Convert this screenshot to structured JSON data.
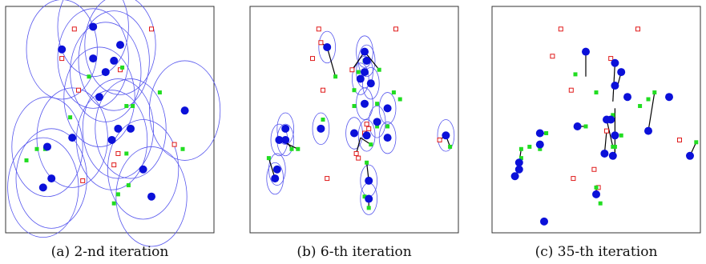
{
  "colors": {
    "blue": "#0b10d9",
    "green": "#21dd21",
    "red": "#e01a1a",
    "ellipse": "#5656ee",
    "link": "#000000"
  },
  "panels": [
    {
      "caption": "(a) 2-nd iteration",
      "blue": [
        [
          0.27,
          0.81
        ],
        [
          0.42,
          0.77
        ],
        [
          0.42,
          0.91
        ],
        [
          0.55,
          0.83
        ],
        [
          0.52,
          0.76
        ],
        [
          0.48,
          0.71
        ],
        [
          0.45,
          0.6
        ],
        [
          0.86,
          0.54
        ],
        [
          0.54,
          0.46
        ],
        [
          0.51,
          0.41
        ],
        [
          0.6,
          0.46
        ],
        [
          0.32,
          0.42
        ],
        [
          0.2,
          0.38
        ],
        [
          0.22,
          0.24
        ],
        [
          0.18,
          0.2
        ],
        [
          0.66,
          0.28
        ],
        [
          0.7,
          0.16
        ]
      ],
      "green": [
        [
          0.56,
          0.73
        ],
        [
          0.4,
          0.69
        ],
        [
          0.74,
          0.62
        ],
        [
          0.58,
          0.56
        ],
        [
          0.61,
          0.56
        ],
        [
          0.31,
          0.51
        ],
        [
          0.15,
          0.37
        ],
        [
          0.19,
          0.37
        ],
        [
          0.85,
          0.37
        ],
        [
          0.1,
          0.32
        ],
        [
          0.58,
          0.35
        ],
        [
          0.54,
          0.17
        ],
        [
          0.52,
          0.13
        ],
        [
          0.59,
          0.21
        ]
      ],
      "red": [
        [
          0.33,
          0.9
        ],
        [
          0.7,
          0.9
        ],
        [
          0.27,
          0.77
        ],
        [
          0.55,
          0.72
        ],
        [
          0.35,
          0.63
        ],
        [
          0.81,
          0.39
        ],
        [
          0.54,
          0.35
        ],
        [
          0.52,
          0.3
        ],
        [
          0.37,
          0.23
        ]
      ],
      "ellipses": [
        [
          0.27,
          0.81,
          0.17,
          0.22
        ],
        [
          0.42,
          0.77,
          0.17,
          0.22
        ],
        [
          0.42,
          0.91,
          0.17,
          0.22
        ],
        [
          0.55,
          0.83,
          0.17,
          0.22
        ],
        [
          0.52,
          0.76,
          0.17,
          0.22
        ],
        [
          0.48,
          0.71,
          0.17,
          0.22
        ],
        [
          0.45,
          0.6,
          0.17,
          0.22
        ],
        [
          0.86,
          0.54,
          0.17,
          0.22
        ],
        [
          0.54,
          0.46,
          0.17,
          0.22
        ],
        [
          0.51,
          0.41,
          0.17,
          0.22
        ],
        [
          0.6,
          0.46,
          0.17,
          0.22
        ],
        [
          0.32,
          0.42,
          0.17,
          0.22
        ],
        [
          0.2,
          0.38,
          0.17,
          0.22
        ],
        [
          0.22,
          0.24,
          0.17,
          0.22
        ],
        [
          0.18,
          0.2,
          0.17,
          0.22
        ],
        [
          0.66,
          0.28,
          0.17,
          0.22
        ],
        [
          0.7,
          0.16,
          0.17,
          0.22
        ]
      ],
      "links": []
    },
    {
      "caption": "(b) 6-th iteration",
      "blue": [
        [
          0.37,
          0.82
        ],
        [
          0.55,
          0.8
        ],
        [
          0.55,
          0.71
        ],
        [
          0.56,
          0.76
        ],
        [
          0.53,
          0.68
        ],
        [
          0.55,
          0.57
        ],
        [
          0.56,
          0.43
        ],
        [
          0.5,
          0.44
        ],
        [
          0.34,
          0.46
        ],
        [
          0.17,
          0.46
        ],
        [
          0.17,
          0.41
        ],
        [
          0.14,
          0.41
        ],
        [
          0.66,
          0.42
        ],
        [
          0.94,
          0.43
        ],
        [
          0.61,
          0.49
        ],
        [
          0.66,
          0.55
        ],
        [
          0.58,
          0.66
        ],
        [
          0.12,
          0.24
        ],
        [
          0.13,
          0.28
        ],
        [
          0.57,
          0.23
        ],
        [
          0.57,
          0.15
        ]
      ],
      "green": [
        [
          0.41,
          0.69
        ],
        [
          0.62,
          0.72
        ],
        [
          0.52,
          0.71
        ],
        [
          0.55,
          0.76
        ],
        [
          0.5,
          0.63
        ],
        [
          0.5,
          0.56
        ],
        [
          0.61,
          0.47
        ],
        [
          0.66,
          0.47
        ],
        [
          0.69,
          0.62
        ],
        [
          0.72,
          0.59
        ],
        [
          0.61,
          0.57
        ],
        [
          0.2,
          0.37
        ],
        [
          0.23,
          0.37
        ],
        [
          0.35,
          0.5
        ],
        [
          0.96,
          0.38
        ],
        [
          0.58,
          0.39
        ],
        [
          0.56,
          0.31
        ],
        [
          0.55,
          0.16
        ],
        [
          0.57,
          0.11
        ],
        [
          0.09,
          0.33
        ]
      ],
      "red": [
        [
          0.33,
          0.9
        ],
        [
          0.7,
          0.9
        ],
        [
          0.34,
          0.84
        ],
        [
          0.3,
          0.77
        ],
        [
          0.49,
          0.72
        ],
        [
          0.35,
          0.63
        ],
        [
          0.55,
          0.44
        ],
        [
          0.51,
          0.35
        ],
        [
          0.52,
          0.33
        ],
        [
          0.56,
          0.48
        ],
        [
          0.57,
          0.46
        ],
        [
          0.37,
          0.24
        ],
        [
          0.91,
          0.41
        ]
      ],
      "ellipses": [
        [
          0.37,
          0.82,
          0.04,
          0.07
        ],
        [
          0.55,
          0.8,
          0.04,
          0.07
        ],
        [
          0.55,
          0.71,
          0.04,
          0.07
        ],
        [
          0.56,
          0.76,
          0.04,
          0.07
        ],
        [
          0.53,
          0.68,
          0.04,
          0.07
        ],
        [
          0.55,
          0.57,
          0.04,
          0.07
        ],
        [
          0.56,
          0.43,
          0.04,
          0.07
        ],
        [
          0.5,
          0.44,
          0.04,
          0.07
        ],
        [
          0.34,
          0.46,
          0.04,
          0.07
        ],
        [
          0.17,
          0.46,
          0.04,
          0.07
        ],
        [
          0.17,
          0.41,
          0.04,
          0.07
        ],
        [
          0.14,
          0.41,
          0.04,
          0.07
        ],
        [
          0.66,
          0.42,
          0.04,
          0.07
        ],
        [
          0.94,
          0.43,
          0.04,
          0.07
        ],
        [
          0.61,
          0.49,
          0.04,
          0.07
        ],
        [
          0.66,
          0.55,
          0.04,
          0.07
        ],
        [
          0.58,
          0.66,
          0.04,
          0.07
        ],
        [
          0.12,
          0.24,
          0.04,
          0.07
        ],
        [
          0.13,
          0.28,
          0.04,
          0.07
        ],
        [
          0.57,
          0.23,
          0.04,
          0.07
        ],
        [
          0.57,
          0.15,
          0.04,
          0.07
        ]
      ],
      "links": [
        [
          0.37,
          0.82,
          0.34,
          0.84
        ],
        [
          0.37,
          0.82,
          0.41,
          0.69
        ],
        [
          0.55,
          0.8,
          0.62,
          0.72
        ],
        [
          0.55,
          0.8,
          0.49,
          0.72
        ],
        [
          0.17,
          0.41,
          0.2,
          0.37
        ],
        [
          0.14,
          0.41,
          0.23,
          0.37
        ],
        [
          0.53,
          0.42,
          0.51,
          0.35
        ],
        [
          0.53,
          0.42,
          0.58,
          0.39
        ],
        [
          0.57,
          0.23,
          0.56,
          0.31
        ],
        [
          0.57,
          0.15,
          0.57,
          0.11
        ],
        [
          0.12,
          0.24,
          0.09,
          0.33
        ],
        [
          0.94,
          0.43,
          0.91,
          0.41
        ],
        [
          0.94,
          0.43,
          0.96,
          0.38
        ]
      ]
    },
    {
      "caption": "(c) 35-th iteration",
      "blue": [
        [
          0.45,
          0.8
        ],
        [
          0.59,
          0.75
        ],
        [
          0.62,
          0.71
        ],
        [
          0.65,
          0.6
        ],
        [
          0.85,
          0.6
        ],
        [
          0.59,
          0.65
        ],
        [
          0.55,
          0.5
        ],
        [
          0.57,
          0.5
        ],
        [
          0.59,
          0.43
        ],
        [
          0.75,
          0.45
        ],
        [
          0.41,
          0.47
        ],
        [
          0.95,
          0.34
        ],
        [
          0.54,
          0.35
        ],
        [
          0.58,
          0.34
        ],
        [
          0.5,
          0.17
        ],
        [
          0.23,
          0.44
        ],
        [
          0.23,
          0.39
        ],
        [
          0.13,
          0.31
        ],
        [
          0.13,
          0.28
        ],
        [
          0.11,
          0.25
        ],
        [
          0.25,
          0.05
        ]
      ],
      "green": [
        [
          0.4,
          0.7
        ],
        [
          0.5,
          0.62
        ],
        [
          0.58,
          0.52
        ],
        [
          0.71,
          0.56
        ],
        [
          0.78,
          0.62
        ],
        [
          0.75,
          0.59
        ],
        [
          0.58,
          0.38
        ],
        [
          0.59,
          0.38
        ],
        [
          0.98,
          0.4
        ],
        [
          0.45,
          0.47
        ],
        [
          0.62,
          0.43
        ],
        [
          0.26,
          0.44
        ],
        [
          0.23,
          0.37
        ],
        [
          0.14,
          0.37
        ],
        [
          0.18,
          0.38
        ],
        [
          0.52,
          0.13
        ],
        [
          0.5,
          0.2
        ],
        [
          0.14,
          0.33
        ]
      ],
      "red": [
        [
          0.33,
          0.9
        ],
        [
          0.7,
          0.9
        ],
        [
          0.29,
          0.78
        ],
        [
          0.57,
          0.77
        ],
        [
          0.38,
          0.63
        ],
        [
          0.9,
          0.41
        ],
        [
          0.55,
          0.45
        ],
        [
          0.54,
          0.35
        ],
        [
          0.49,
          0.28
        ],
        [
          0.51,
          0.2
        ],
        [
          0.39,
          0.24
        ]
      ],
      "ellipses": [],
      "links": [
        [
          0.45,
          0.8,
          0.45,
          0.69
        ],
        [
          0.59,
          0.75,
          0.58,
          0.58
        ],
        [
          0.59,
          0.55,
          0.59,
          0.35
        ],
        [
          0.55,
          0.5,
          0.58,
          0.38
        ],
        [
          0.54,
          0.35,
          0.55,
          0.45
        ],
        [
          0.59,
          0.34,
          0.59,
          0.38
        ],
        [
          0.62,
          0.71,
          0.6,
          0.64
        ],
        [
          0.75,
          0.45,
          0.78,
          0.62
        ],
        [
          0.95,
          0.34,
          0.98,
          0.4
        ],
        [
          0.41,
          0.47,
          0.45,
          0.47
        ],
        [
          0.23,
          0.44,
          0.26,
          0.44
        ],
        [
          0.13,
          0.31,
          0.14,
          0.37
        ],
        [
          0.11,
          0.25,
          0.13,
          0.28
        ],
        [
          0.5,
          0.17,
          0.5,
          0.2
        ]
      ]
    }
  ]
}
